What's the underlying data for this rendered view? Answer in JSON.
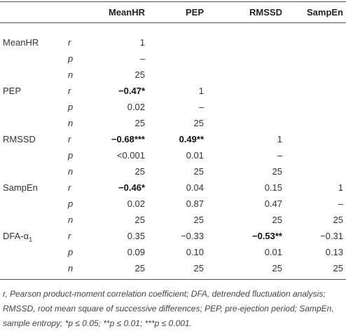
{
  "table": {
    "columns": [
      "MeanHR",
      "PEP",
      "RMSSD",
      "SampEn"
    ],
    "groups": [
      {
        "label": "MeanHR",
        "rows": [
          {
            "stat": "r",
            "cells": [
              "1"
            ]
          },
          {
            "stat": "p",
            "cells": [
              "–"
            ]
          },
          {
            "stat": "n",
            "cells": [
              "25"
            ]
          }
        ]
      },
      {
        "label": "PEP",
        "rows": [
          {
            "stat": "r",
            "cells": [
              {
                "text": "−0.47*",
                "bold": true
              },
              "1"
            ]
          },
          {
            "stat": "p",
            "cells": [
              "0.02",
              "–"
            ]
          },
          {
            "stat": "n",
            "cells": [
              "25",
              "25"
            ]
          }
        ]
      },
      {
        "label": "RMSSD",
        "rows": [
          {
            "stat": "r",
            "cells": [
              {
                "text": "−0.68***",
                "bold": true
              },
              {
                "text": "0.49**",
                "bold": true
              },
              "1"
            ]
          },
          {
            "stat": "p",
            "cells": [
              "<0.001",
              "0.01",
              "–"
            ]
          },
          {
            "stat": "n",
            "cells": [
              "25",
              "25",
              "25"
            ]
          }
        ]
      },
      {
        "label": "SampEn",
        "rows": [
          {
            "stat": "r",
            "cells": [
              {
                "text": "−0.46*",
                "bold": true
              },
              "0.04",
              "0.15",
              "1"
            ]
          },
          {
            "stat": "p",
            "cells": [
              "0.02",
              "0.87",
              "0.47",
              "–"
            ]
          },
          {
            "stat": "n",
            "cells": [
              "25",
              "25",
              "25",
              "25"
            ]
          }
        ]
      },
      {
        "label": "DFA-α",
        "label_sub": "1",
        "rows": [
          {
            "stat": "r",
            "cells": [
              "0.35",
              "−0.33",
              {
                "text": "−0.53**",
                "bold": true
              },
              "−0.31"
            ]
          },
          {
            "stat": "p",
            "cells": [
              "0.09",
              "0.10",
              "0.01",
              "0.13"
            ]
          },
          {
            "stat": "n",
            "cells": [
              "25",
              "25",
              "25",
              "25"
            ]
          }
        ]
      }
    ],
    "footnote": "r, Pearson product-moment correlation coefficient; DFA, detrended fluctuation analysis; RMSSD, root mean square of successive differences; PEP, pre-ejection period; SampEn, sample entropy; *p ≤ 0.05; **p ≤ 0.01; ***p ≤ 0.001."
  }
}
